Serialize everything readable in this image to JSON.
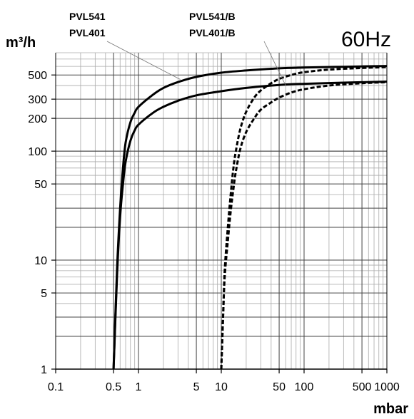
{
  "chart_data": {
    "type": "line",
    "title": "60Hz",
    "ylabel": "m³/h",
    "xlabel": "mbar",
    "x_scale": "log",
    "y_scale": "log",
    "xlim": [
      0.1,
      1000
    ],
    "ylim": [
      1,
      800
    ],
    "x_ticks": [
      {
        "value": 0.1,
        "label": "0.1"
      },
      {
        "value": 0.5,
        "label": "0.5"
      },
      {
        "value": 1,
        "label": "1"
      },
      {
        "value": 5,
        "label": "5"
      },
      {
        "value": 10,
        "label": "10"
      },
      {
        "value": 50,
        "label": "50"
      },
      {
        "value": 100,
        "label": "100"
      },
      {
        "value": 500,
        "label": "500"
      },
      {
        "value": 1000,
        "label": "1000"
      }
    ],
    "y_ticks": [
      {
        "value": 1,
        "label": "1"
      },
      {
        "value": 5,
        "label": "5"
      },
      {
        "value": 10,
        "label": "10"
      },
      {
        "value": 50,
        "label": "50"
      },
      {
        "value": 100,
        "label": "100"
      },
      {
        "value": 200,
        "label": "200"
      },
      {
        "value": 300,
        "label": "300"
      },
      {
        "value": 500,
        "label": "500"
      }
    ],
    "grid": true,
    "labels": {
      "solid_line1": "PVL541",
      "solid_line2": "PVL401",
      "dashed_line1": "PVL541/B",
      "dashed_line2": "PVL401/B"
    },
    "series": [
      {
        "style": "solid",
        "points": [
          [
            0.5,
            1
          ],
          [
            0.55,
            8
          ],
          [
            0.6,
            30
          ],
          [
            0.65,
            70
          ],
          [
            0.7,
            120
          ],
          [
            0.8,
            185
          ],
          [
            0.9,
            225
          ],
          [
            1,
            255
          ],
          [
            1.5,
            330
          ],
          [
            2,
            380
          ],
          [
            3,
            430
          ],
          [
            5,
            480
          ],
          [
            10,
            525
          ],
          [
            20,
            550
          ],
          [
            50,
            575
          ],
          [
            100,
            585
          ],
          [
            300,
            595
          ],
          [
            1000,
            605
          ]
        ]
      },
      {
        "style": "solid",
        "points": [
          [
            0.5,
            1
          ],
          [
            0.55,
            7
          ],
          [
            0.6,
            25
          ],
          [
            0.65,
            50
          ],
          [
            0.7,
            80
          ],
          [
            0.8,
            125
          ],
          [
            0.9,
            155
          ],
          [
            1,
            175
          ],
          [
            1.5,
            225
          ],
          [
            2,
            255
          ],
          [
            3,
            290
          ],
          [
            5,
            325
          ],
          [
            10,
            355
          ],
          [
            20,
            380
          ],
          [
            50,
            405
          ],
          [
            100,
            415
          ],
          [
            300,
            425
          ],
          [
            1000,
            435
          ]
        ]
      },
      {
        "style": "dashed",
        "points": [
          [
            10,
            1
          ],
          [
            10.5,
            3
          ],
          [
            11,
            8
          ],
          [
            12,
            20
          ],
          [
            13,
            40
          ],
          [
            14,
            70
          ],
          [
            15,
            100
          ],
          [
            17,
            160
          ],
          [
            20,
            230
          ],
          [
            25,
            310
          ],
          [
            30,
            360
          ],
          [
            40,
            420
          ],
          [
            50,
            460
          ],
          [
            70,
            500
          ],
          [
            100,
            530
          ],
          [
            200,
            560
          ],
          [
            500,
            580
          ],
          [
            1000,
            590
          ]
        ]
      },
      {
        "style": "dashed",
        "points": [
          [
            10,
            1
          ],
          [
            10.5,
            3
          ],
          [
            11,
            7
          ],
          [
            12,
            15
          ],
          [
            13,
            28
          ],
          [
            14,
            45
          ],
          [
            15,
            65
          ],
          [
            17,
            105
          ],
          [
            20,
            150
          ],
          [
            25,
            200
          ],
          [
            30,
            240
          ],
          [
            40,
            280
          ],
          [
            50,
            310
          ],
          [
            70,
            345
          ],
          [
            100,
            370
          ],
          [
            200,
            400
          ],
          [
            500,
            420
          ],
          [
            1000,
            430
          ]
        ]
      }
    ]
  }
}
